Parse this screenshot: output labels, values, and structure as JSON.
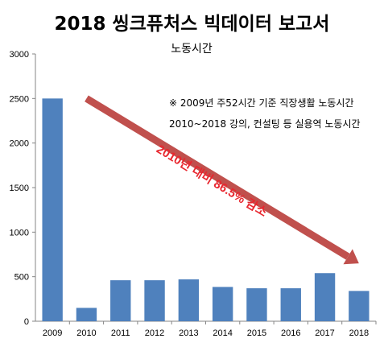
{
  "chart_data": {
    "type": "bar",
    "title": "2018 씽크퓨처스 빅데이터 보고서",
    "subtitle": "노동시간",
    "categories": [
      "2009",
      "2010",
      "2011",
      "2012",
      "2013",
      "2014",
      "2015",
      "2016",
      "2017",
      "2018"
    ],
    "values": [
      2500,
      150,
      460,
      460,
      470,
      385,
      370,
      370,
      540,
      340
    ],
    "ylim": [
      0,
      3000
    ],
    "yticks": [
      0,
      500,
      1000,
      1500,
      2000,
      2500,
      3000
    ],
    "bar_color": "#4f81bd",
    "grid": false,
    "notes": [
      "※ 2009년 주52시간 기준 직장생활 노동시간",
      "2010~2018 강의, 컨설팅 등 실용역 노동시간"
    ],
    "annotation": {
      "text": "2010년 대비 86.5% 감소",
      "color": "#e8272f",
      "arrow_color": "#c0504d",
      "arrow_from": [
        "2010",
        2500
      ],
      "arrow_to": [
        "2018",
        650
      ]
    }
  }
}
